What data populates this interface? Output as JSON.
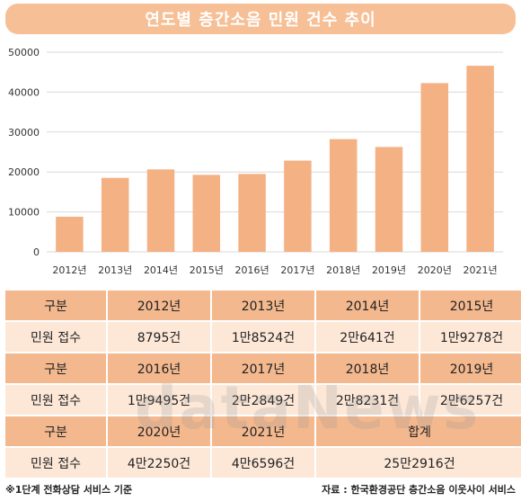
{
  "title": "연도별 층간소음 민원 건수 추이",
  "chart_data": {
    "type": "bar",
    "categories": [
      "2012년",
      "2013년",
      "2014년",
      "2015년",
      "2016년",
      "2017년",
      "2018년",
      "2019년",
      "2020년",
      "2021년"
    ],
    "values": [
      8795,
      18524,
      20641,
      19278,
      19495,
      22849,
      28231,
      26257,
      42250,
      46596
    ],
    "ylim": [
      0,
      50000
    ],
    "yticks": [
      0,
      10000,
      20000,
      30000,
      40000,
      50000
    ],
    "grid": true,
    "bar_color": "#f4b183"
  },
  "table": {
    "rows": [
      {
        "kind": "hdr",
        "cells": [
          {
            "text": "구분"
          },
          {
            "text": "2012년"
          },
          {
            "text": "2013년"
          },
          {
            "text": "2014년"
          },
          {
            "text": "2015년"
          }
        ]
      },
      {
        "kind": "val",
        "cells": [
          {
            "text": "민원 접수"
          },
          {
            "text": "8795건"
          },
          {
            "text": "1만8524건"
          },
          {
            "text": "2만641건"
          },
          {
            "text": "1만9278건"
          }
        ]
      },
      {
        "kind": "hdr",
        "cells": [
          {
            "text": "구분"
          },
          {
            "text": "2016년"
          },
          {
            "text": "2017년"
          },
          {
            "text": "2018년"
          },
          {
            "text": "2019년"
          }
        ]
      },
      {
        "kind": "val",
        "cells": [
          {
            "text": "민원 접수"
          },
          {
            "text": "1만9495건"
          },
          {
            "text": "2만2849건"
          },
          {
            "text": "2만8231건"
          },
          {
            "text": "2만6257건"
          }
        ]
      },
      {
        "kind": "hdr",
        "cells": [
          {
            "text": "구분"
          },
          {
            "text": "2020년"
          },
          {
            "text": "2021년"
          },
          {
            "text": "합계",
            "colspan": 2
          }
        ]
      },
      {
        "kind": "val",
        "cells": [
          {
            "text": "민원 접수"
          },
          {
            "text": "4만2250건"
          },
          {
            "text": "4만6596건"
          },
          {
            "text": "25만2916건",
            "colspan": 2
          }
        ]
      }
    ]
  },
  "watermark": "dataNews",
  "footer": {
    "note": "※1단계 전화상담 서비스 기준",
    "source": "자료 : 한국환경공단 층간소음 이웃사이 서비스"
  }
}
